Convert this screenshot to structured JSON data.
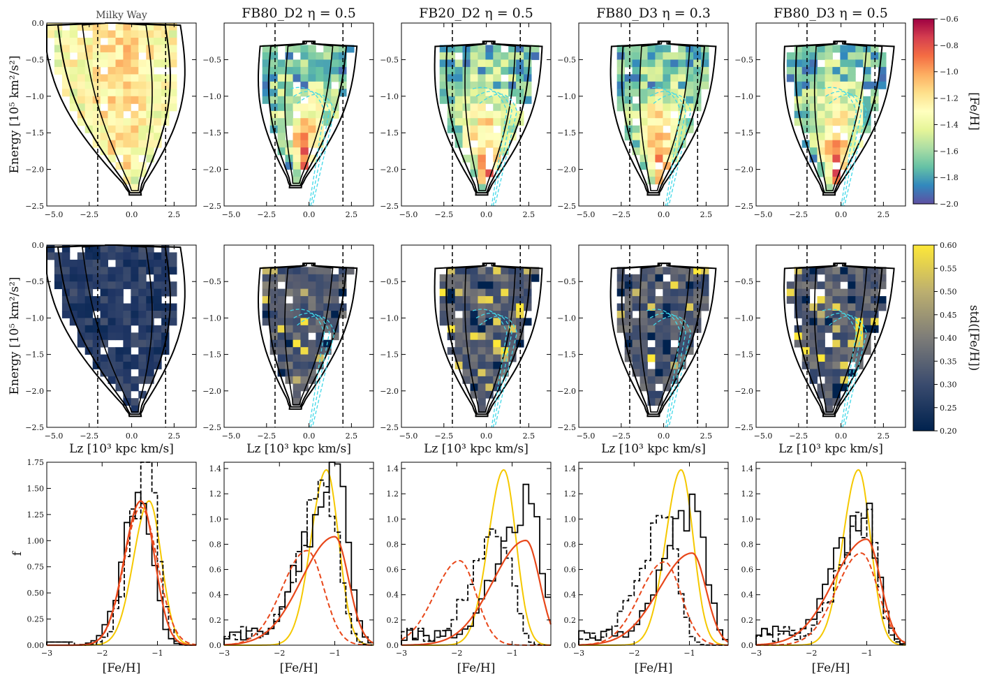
{
  "figure": {
    "panel_titles": [
      "Milky Way",
      "FB80_D2 η = 0.5",
      "FB20_D2 η = 0.5",
      "FB80_D3 η = 0.3",
      "FB80_D3 η = 0.5"
    ],
    "row_ylabels": [
      "Energy [10⁵ km²/s²]",
      "Energy [10⁵ km²/s²]",
      "f"
    ],
    "row_xlabels": [
      "",
      "Lz [10³ kpc km/s]",
      "[Fe/H]"
    ],
    "lz_ticks": [
      "−5.0",
      "−2.5",
      "0.0",
      "2.5"
    ],
    "energy_ticks": [
      "0.0",
      "−0.5",
      "−1.0",
      "−1.5",
      "−2.0",
      "−2.5"
    ],
    "feh_ticks": [
      "−3",
      "−2",
      "−1"
    ],
    "f_ticks_mw": [
      "0.00",
      "0.25",
      "0.50",
      "0.75",
      "1.00",
      "1.25",
      "1.50",
      "1.75"
    ],
    "f_ticks_sim": [
      "0.0",
      "0.2",
      "0.4",
      "0.6",
      "0.8",
      "1.0",
      "1.2",
      "1.4"
    ],
    "colorbars": [
      {
        "label": "[Fe/H]",
        "ticks": [
          "−0.6",
          "−0.8",
          "−1.0",
          "−1.2",
          "−1.4",
          "−1.6",
          "−1.8",
          "−2.0"
        ],
        "range": [
          -2.0,
          -0.6
        ],
        "colormap": "Spectral_r"
      },
      {
        "label": "std([Fe/H])",
        "ticks": [
          "0.60",
          "0.55",
          "0.50",
          "0.45",
          "0.40",
          "0.35",
          "0.30",
          "0.25",
          "0.20"
        ],
        "range": [
          0.2,
          0.6
        ],
        "colormap": "cividis"
      }
    ],
    "colors": {
      "mw_yellow": "#f5c800",
      "model_orange": "#e8471a",
      "sim_cyan": "#40d8e8",
      "contour": "#000000"
    }
  },
  "chart_data": [
    {
      "type": "heatmap",
      "row": "mean [Fe/H] in E–Lz",
      "x_label": "Lz [10³ kpc km/s]",
      "y_label": "Energy [10⁵ km²/s²]",
      "xlim": [
        -5.0,
        3.8
      ],
      "ylim": [
        -2.5,
        0.0
      ],
      "vertical_dashed_lines_x": [
        -2.0,
        2.0
      ],
      "panels": [
        "Milky Way",
        "FB80_D2 η = 0.5",
        "FB20_D2 η = 0.5",
        "FB80_D3 η = 0.3",
        "FB80_D3 η = 0.5"
      ]
    },
    {
      "type": "heatmap",
      "row": "std([Fe/H]) in E–Lz",
      "x_label": "Lz [10³ kpc km/s]",
      "y_label": "Energy [10⁵ km²/s²]",
      "xlim": [
        -5.0,
        3.8
      ],
      "ylim": [
        -2.5,
        0.0
      ],
      "vertical_dashed_lines_x": [
        -2.0,
        2.0
      ],
      "panels": [
        "Milky Way",
        "FB80_D2 η = 0.5",
        "FB20_D2 η = 0.5",
        "FB80_D3 η = 0.3",
        "FB80_D3 η = 0.5"
      ]
    },
    {
      "type": "line",
      "row": "MDF",
      "x_label": "[Fe/H]",
      "y_label": "f",
      "xlim": [
        -3.0,
        -0.3
      ],
      "panels": [
        {
          "name": "Milky Way",
          "ylim": [
            0,
            1.75
          ],
          "yellow_peak": [
            -1.15,
            1.38
          ],
          "orange_solid_peak": [
            -1.3,
            1.38
          ],
          "orange_dashed_peak": [
            -1.3,
            1.32
          ],
          "black_solid_peak": [
            -1.3,
            1.42
          ],
          "black_dashed_peak": [
            -1.2,
            1.67
          ]
        },
        {
          "name": "FB80_D2 η = 0.5",
          "ylim": [
            0,
            1.45
          ],
          "yellow_peak": [
            -1.15,
            1.39
          ],
          "orange_solid_peak": [
            -1.0,
            0.86
          ],
          "orange_dashed_peak": [
            -1.5,
            0.75
          ],
          "black_solid_peak": [
            -1.0,
            1.34
          ],
          "black_dashed_peak": [
            -1.1,
            1.24
          ]
        },
        {
          "name": "FB20_D2 η = 0.5",
          "ylim": [
            0,
            1.45
          ],
          "yellow_peak": [
            -1.15,
            1.39
          ],
          "orange_solid_peak": [
            -0.75,
            0.83
          ],
          "orange_dashed_peak": [
            -1.95,
            0.67
          ],
          "black_solid_peak": [
            -0.7,
            1.14
          ],
          "black_dashed_peak": [
            -1.2,
            0.98
          ]
        },
        {
          "name": "FB80_D3 η = 0.3",
          "ylim": [
            0,
            1.45
          ],
          "yellow_peak": [
            -1.15,
            1.39
          ],
          "orange_solid_peak": [
            -0.95,
            0.73
          ],
          "orange_dashed_peak": [
            -1.45,
            0.66
          ],
          "black_solid_peak": [
            -0.9,
            1.04
          ],
          "black_dashed_peak": [
            -1.4,
            1.01
          ]
        },
        {
          "name": "FB80_D3 η = 0.5",
          "ylim": [
            0,
            1.45
          ],
          "yellow_peak": [
            -1.15,
            1.39
          ],
          "orange_solid_peak": [
            -1.0,
            0.84
          ],
          "orange_dashed_peak": [
            -1.1,
            0.73
          ],
          "black_solid_peak": [
            -1.0,
            1.06
          ],
          "black_dashed_peak": [
            -1.0,
            0.96
          ]
        }
      ]
    }
  ]
}
